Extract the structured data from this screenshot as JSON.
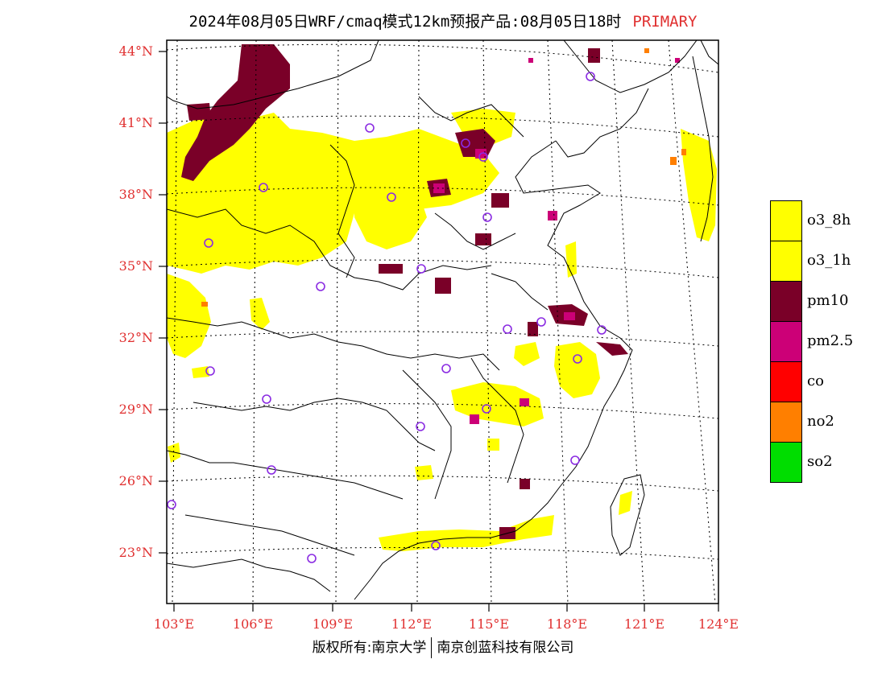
{
  "title": {
    "main": "2024年08月05日WRF/cmaq模式12km预报产品:08月05日18时",
    "tag": "PRIMARY"
  },
  "axes": {
    "latitudes": [
      "44°N",
      "41°N",
      "38°N",
      "35°N",
      "32°N",
      "29°N",
      "26°N",
      "23°N"
    ],
    "longitudes": [
      "103°E",
      "106°E",
      "109°E",
      "112°E",
      "115°E",
      "118°E",
      "121°E",
      "124°E"
    ]
  },
  "legend": [
    {
      "label": "o3_8h",
      "color": "#ffff00"
    },
    {
      "label": "o3_1h",
      "color": "#ffff00"
    },
    {
      "label": "pm10",
      "color": "#7a0028"
    },
    {
      "label": "pm2.5",
      "color": "#cc0077"
    },
    {
      "label": "co",
      "color": "#ff0000"
    },
    {
      "label": "no2",
      "color": "#ff7f00"
    },
    {
      "label": "so2",
      "color": "#00dd00"
    }
  ],
  "footer": {
    "left": "版权所有:南京大学",
    "right": "南京创蓝科技有限公司"
  },
  "colors": {
    "label_red": "#e03030",
    "o3": "#ffff00",
    "pm10": "#7a0028",
    "pm25": "#cc0077",
    "no2": "#ff7f00",
    "station_ring": "#8a2be2"
  }
}
